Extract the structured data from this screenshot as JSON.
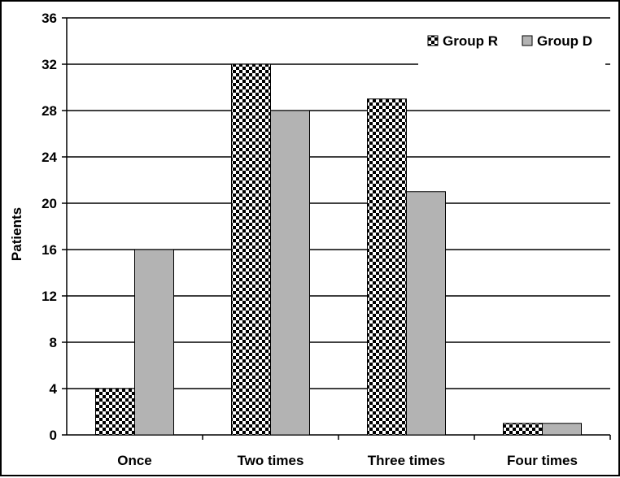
{
  "chart_data": {
    "type": "bar",
    "categories": [
      "Once",
      "Two times",
      "Three times",
      "Four times"
    ],
    "series": [
      {
        "name": "Group R",
        "values": [
          4,
          32,
          29,
          1
        ],
        "pattern": "checkerboard"
      },
      {
        "name": "Group D",
        "values": [
          16,
          28,
          21,
          1
        ],
        "color": "#b3b3b3"
      }
    ],
    "ylabel": "Patients",
    "xlabel": "",
    "ylim": [
      0,
      36
    ],
    "yticks": [
      "0",
      "4",
      "8",
      "12",
      "16",
      "20",
      "24",
      "28",
      "32",
      "36"
    ],
    "grid": true,
    "legend": "top-right"
  }
}
